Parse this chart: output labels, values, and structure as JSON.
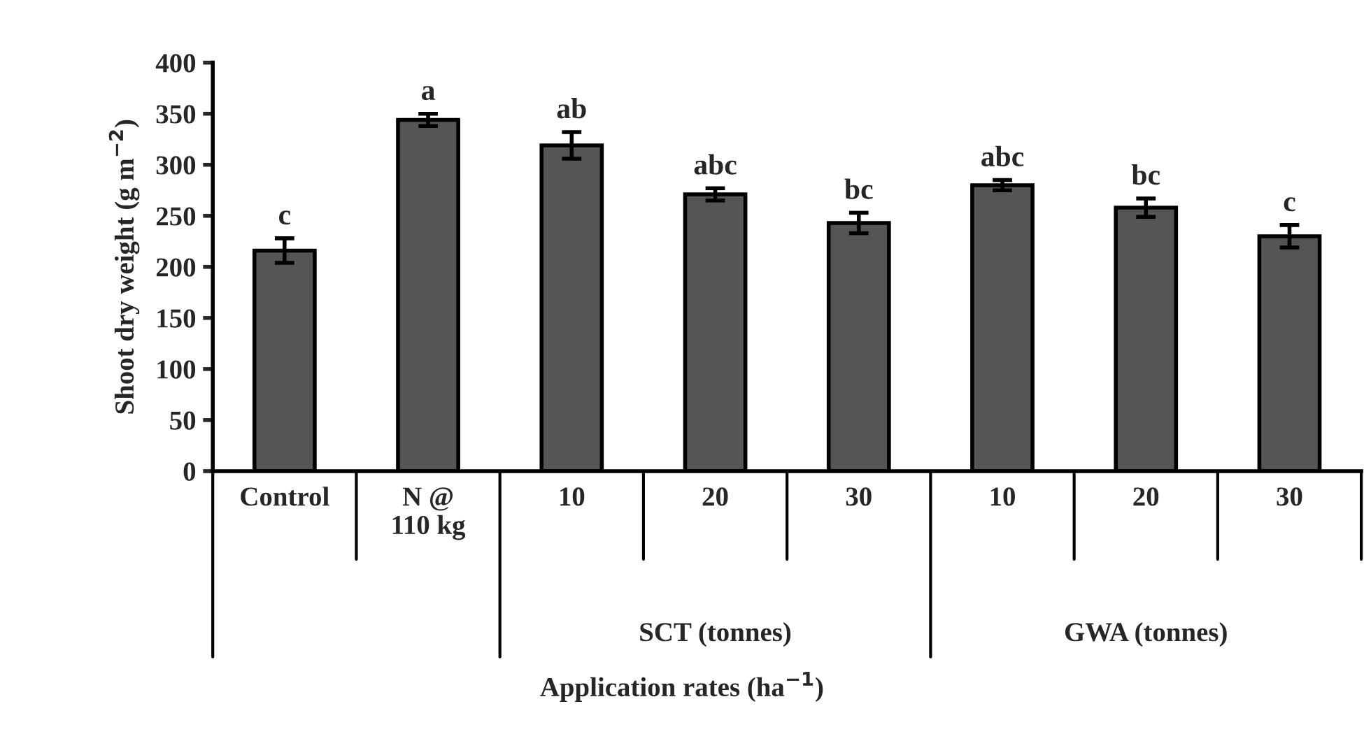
{
  "chart_data": {
    "type": "bar",
    "ylabel": "Shoot dry weight (g m$^{−2}$)",
    "xlabel": "Application rates (ha$^{−1}$)",
    "categories": [
      "Control",
      "N @\n110 kg",
      "10",
      "20",
      "30",
      "10",
      "20",
      "30"
    ],
    "values": [
      216,
      344,
      319,
      271,
      243,
      280,
      258,
      230
    ],
    "errors": [
      12,
      6,
      13,
      6,
      10,
      5,
      9,
      11
    ],
    "color": "#555555",
    "ylim": [
      0,
      400
    ],
    "yticks": [
      0,
      50,
      100,
      150,
      200,
      250,
      300,
      350,
      400
    ],
    "annotations": [
      "c",
      "a",
      "ab",
      "abc",
      "bc",
      "abc",
      "bc",
      "c",
      "SCT (tonnes)",
      "GWA (tonnes)"
    ],
    "grid": false,
    "legend": false
  }
}
